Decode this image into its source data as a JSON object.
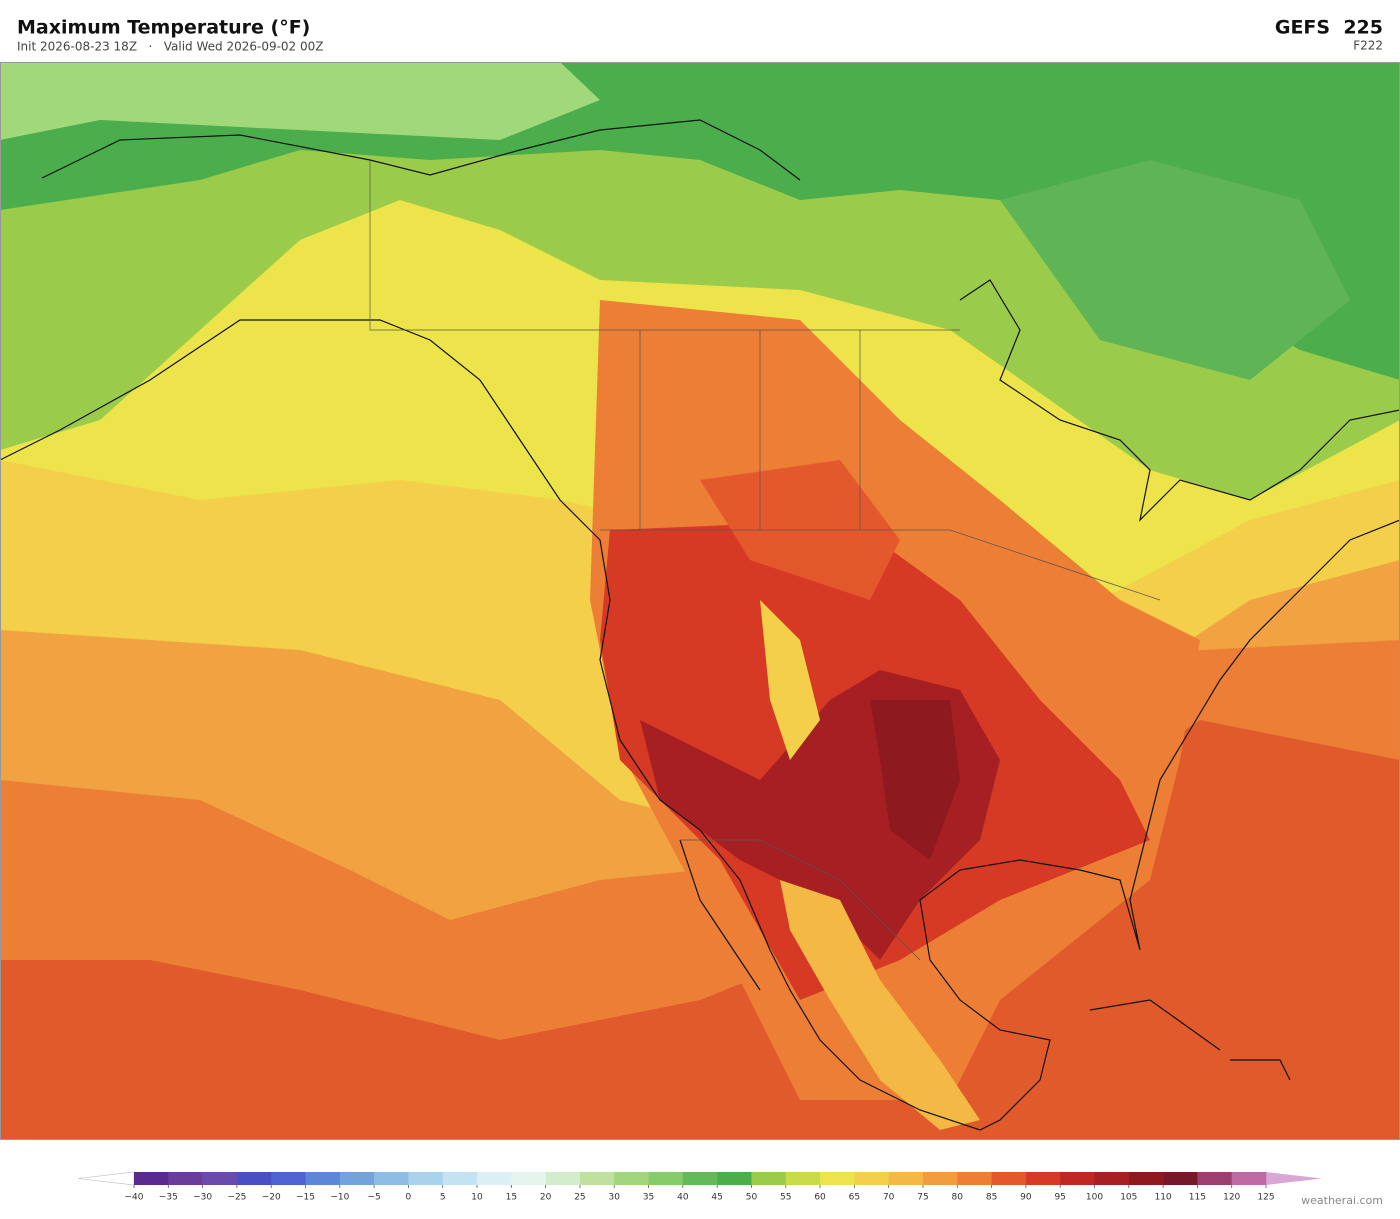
{
  "header": {
    "title": "Maximum Temperature  (°F)",
    "subtitle": "Init 2026-08-23 18Z   ·   Valid Wed 2026-09-02 00Z",
    "model": "GEFS  225",
    "forecast_hour": "F222"
  },
  "colorbar": {
    "ticks": [
      {
        "value": -40,
        "label": "−40"
      },
      {
        "value": -35,
        "label": "−35"
      },
      {
        "value": -30,
        "label": "−30"
      },
      {
        "value": -25,
        "label": "−25"
      },
      {
        "value": -20,
        "label": "−20"
      },
      {
        "value": -15,
        "label": "−15"
      },
      {
        "value": -10,
        "label": "−10"
      },
      {
        "value": -5,
        "label": "−5"
      },
      0,
      5,
      10,
      15,
      20,
      25,
      30,
      35,
      40,
      45,
      50,
      55,
      60,
      65,
      70,
      75,
      80,
      85,
      90,
      95,
      100,
      105,
      110,
      115,
      120,
      125
    ],
    "colors": [
      "#5b2a8e",
      "#6a3d9a",
      "#6a4aaa",
      "#4a4fc0",
      "#4f63cf",
      "#5d86d6",
      "#74a3dc",
      "#8dbde4",
      "#a9d3ec",
      "#c3e3f2",
      "#dbeff5",
      "#e5f4ec",
      "#d3eccb",
      "#bfe19d",
      "#a2d67d",
      "#85cc6a",
      "#62bb58",
      "#4cad4c",
      "#9bcb4b",
      "#c8dc4a",
      "#ede34a",
      "#f4d04a",
      "#f4b845",
      "#f19c3f",
      "#ec7f35",
      "#e4592c",
      "#d63a24",
      "#bf2722",
      "#a61f22",
      "#8e1a1f",
      "#761827",
      "#9a3f6e",
      "#bd6aa5"
    ],
    "under_color": "#ffffff",
    "over_color": "#d9a6d6"
  },
  "watermark": "weatherai.com"
}
